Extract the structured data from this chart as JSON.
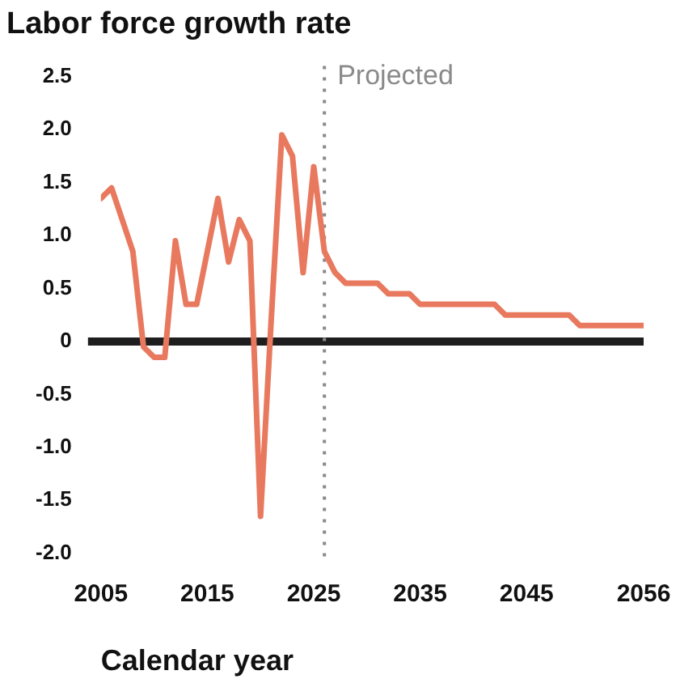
{
  "chart_data": {
    "type": "line",
    "title": "Labor force growth rate",
    "xlabel": "Calendar year",
    "x": [
      2005,
      2006,
      2007,
      2008,
      2009,
      2010,
      2011,
      2012,
      2013,
      2014,
      2015,
      2016,
      2017,
      2018,
      2019,
      2020,
      2021,
      2022,
      2023,
      2024,
      2025,
      2026,
      2027,
      2028,
      2029,
      2030,
      2031,
      2032,
      2033,
      2034,
      2035,
      2036,
      2037,
      2038,
      2039,
      2040,
      2041,
      2042,
      2043,
      2044,
      2045,
      2046,
      2047,
      2048,
      2049,
      2050,
      2051,
      2052,
      2053,
      2054,
      2055,
      2056
    ],
    "series": [
      {
        "color": "#e8795f",
        "values": [
          1.35,
          1.45,
          1.15,
          0.85,
          -0.05,
          -0.15,
          -0.15,
          0.95,
          0.35,
          0.35,
          0.85,
          1.35,
          0.75,
          1.15,
          0.95,
          -1.65,
          0.2,
          1.95,
          1.75,
          0.65,
          1.65,
          0.85,
          0.65,
          0.55,
          0.55,
          0.55,
          0.55,
          0.45,
          0.45,
          0.45,
          0.35,
          0.35,
          0.35,
          0.35,
          0.35,
          0.35,
          0.35,
          0.35,
          0.25,
          0.25,
          0.25,
          0.25,
          0.25,
          0.25,
          0.25,
          0.15,
          0.15,
          0.15,
          0.15,
          0.15,
          0.15,
          0.15
        ]
      }
    ],
    "xlim": [
      2005,
      2056
    ],
    "xticks": [
      2005,
      2015,
      2025,
      2035,
      2045,
      2056
    ],
    "ylim": [
      -2.1,
      2.6
    ],
    "yticks": [
      {
        "value": 2.5,
        "label": "2.5"
      },
      {
        "value": 2,
        "label": "2.0"
      },
      {
        "value": 1.5,
        "label": "1.5"
      },
      {
        "value": 1,
        "label": "1.0"
      },
      {
        "value": 0.5,
        "label": "0.5"
      },
      0,
      {
        "value": -0.5,
        "label": "-0.5"
      },
      {
        "value": -1,
        "label": "-1.0"
      },
      {
        "value": -1.5,
        "label": "-1.5"
      },
      {
        "value": -2,
        "label": "-2.0"
      }
    ],
    "ref_lines": [
      {
        "axis": "y",
        "value": 0,
        "color": "#1e1e1e",
        "line_style": "solid"
      },
      {
        "axis": "x",
        "value": 2026,
        "label": "Projected",
        "color": "#8a8a8a",
        "line_style": "dotted"
      }
    ],
    "grid": false,
    "legend": false,
    "marker": "none",
    "line_style": "solid"
  }
}
